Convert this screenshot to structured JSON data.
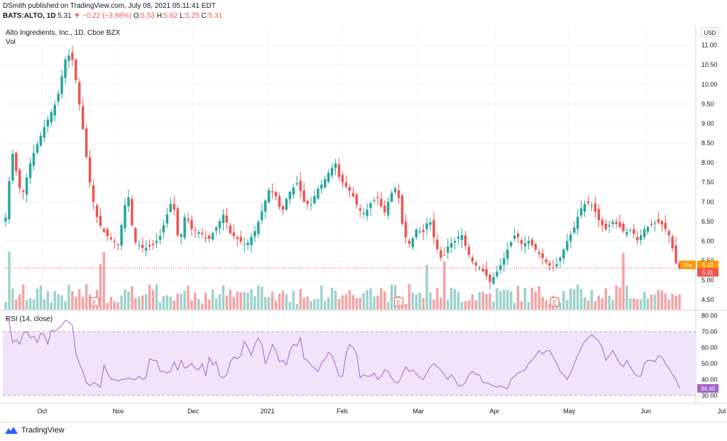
{
  "header": {
    "publisher": "DSmith published on TradingView.com, July 08, 2021 05:11:41 EDT",
    "symbol": "BATS:ALTO, 1D",
    "last": "5.31",
    "change_arrow": "▼",
    "change": "−0.22 (−3.98%)",
    "o_label": "O:",
    "o_value": "5.53",
    "h_label": "H:",
    "h_value": "5.62",
    "l_label": "L:",
    "l_value": "5.25",
    "c_label": "C:",
    "c_value": "5.31"
  },
  "footer": {
    "brand": "TradingView"
  },
  "colors": {
    "up": "#26a69a",
    "down": "#ef5350",
    "vol_up": "#9dd2cb",
    "vol_down": "#f5a3a3",
    "rsi_line": "#a562c9",
    "rsi_band": "#f1e4fa",
    "grid": "#f0f3fa",
    "pre_badge": "#ff9800",
    "last_badge": "#ef5350"
  },
  "chart_data": {
    "type": "candlestick",
    "title": "Alto Ingredients, Inc., 1D, Cboe BZX",
    "volume_label": "Vol",
    "currency": "USD",
    "price_ylim": [
      4.25,
      11.5
    ],
    "price_ticks": [
      "11.00",
      "10.50",
      "10.00",
      "9.50",
      "9.00",
      "8.50",
      "8.00",
      "7.50",
      "7.00",
      "6.50",
      "6.00",
      "5.50",
      "5.00",
      "4.50"
    ],
    "x_labels": [
      "Oct",
      "Nov",
      "Dec",
      "2021",
      "Feb",
      "Mar",
      "Apr",
      "May",
      "Jun",
      "Jul"
    ],
    "x_label_positions": [
      10.4,
      32.1,
      53.4,
      74.6,
      95.9,
      117.6,
      139.3,
      160.6,
      182.4,
      204.0
    ],
    "earnings_marker_positions": [
      27.7,
      122.5,
      171.1
    ],
    "earnings_label": "E",
    "close_path": [
      [
        0,
        6.6
      ],
      [
        2,
        8.3
      ],
      [
        5,
        7.1
      ],
      [
        8,
        8.1
      ],
      [
        12,
        8.9
      ],
      [
        16,
        9.6
      ],
      [
        19,
        10.8
      ],
      [
        21,
        10.6
      ],
      [
        24,
        8.9
      ],
      [
        26,
        7.6
      ],
      [
        28,
        6.7
      ],
      [
        30,
        6.3
      ],
      [
        32,
        6.1
      ],
      [
        35,
        5.9
      ],
      [
        38,
        7.3
      ],
      [
        40,
        6.0
      ],
      [
        43,
        5.8
      ],
      [
        46,
        5.9
      ],
      [
        48,
        6.1
      ],
      [
        50,
        6.6
      ],
      [
        52,
        7.1
      ],
      [
        54,
        5.9
      ],
      [
        56,
        6.7
      ],
      [
        58,
        6.3
      ],
      [
        61,
        6.2
      ],
      [
        63,
        6.0
      ],
      [
        66,
        6.4
      ],
      [
        68,
        6.7
      ],
      [
        70,
        6.2
      ],
      [
        73,
        6.0
      ],
      [
        75,
        5.9
      ],
      [
        78,
        6.3
      ],
      [
        80,
        6.8
      ],
      [
        82,
        7.3
      ],
      [
        84,
        7.2
      ],
      [
        86,
        6.7
      ],
      [
        88,
        7.2
      ],
      [
        91,
        7.5
      ],
      [
        93,
        7.0
      ],
      [
        95,
        6.9
      ],
      [
        97,
        7.3
      ],
      [
        99,
        7.5
      ],
      [
        101,
        7.8
      ],
      [
        103,
        8.0
      ],
      [
        104,
        7.6
      ],
      [
        106,
        7.4
      ],
      [
        108,
        7.2
      ],
      [
        110,
        6.8
      ],
      [
        112,
        6.7
      ],
      [
        114,
        7.0
      ],
      [
        116,
        7.1
      ],
      [
        118,
        6.7
      ],
      [
        120,
        7.2
      ],
      [
        122,
        7.4
      ],
      [
        124,
        6.2
      ],
      [
        126,
        5.9
      ],
      [
        128,
        6.3
      ],
      [
        130,
        6.2
      ],
      [
        132,
        6.6
      ],
      [
        134,
        5.9
      ],
      [
        136,
        5.5
      ],
      [
        138,
        5.9
      ],
      [
        140,
        6.0
      ],
      [
        142,
        6.2
      ],
      [
        144,
        5.7
      ],
      [
        146,
        5.4
      ],
      [
        148,
        5.3
      ],
      [
        150,
        5.1
      ],
      [
        151,
        4.95
      ],
      [
        153,
        5.2
      ],
      [
        155,
        5.5
      ],
      [
        157,
        5.9
      ],
      [
        159,
        6.2
      ],
      [
        161,
        5.9
      ],
      [
        163,
        6.0
      ],
      [
        165,
        5.8
      ],
      [
        167,
        5.6
      ],
      [
        169,
        5.4
      ],
      [
        171,
        5.3
      ],
      [
        173,
        5.6
      ],
      [
        175,
        6.0
      ],
      [
        177,
        6.3
      ],
      [
        179,
        6.8
      ],
      [
        181,
        7.0
      ],
      [
        183,
        6.9
      ],
      [
        185,
        6.5
      ],
      [
        187,
        6.3
      ],
      [
        189,
        6.5
      ],
      [
        191,
        6.4
      ],
      [
        193,
        6.2
      ],
      [
        195,
        6.3
      ],
      [
        197,
        6.0
      ],
      [
        199,
        6.3
      ],
      [
        201,
        6.4
      ],
      [
        203,
        6.5
      ],
      [
        205,
        6.4
      ],
      [
        207,
        6.1
      ],
      [
        209,
        5.4
      ],
      [
        210,
        5.31
      ]
    ],
    "rsi": {
      "label": "RSI (14, close)",
      "ylim": [
        25,
        82
      ],
      "ticks": [
        "80.00",
        "70.00",
        "60.00",
        "50.00",
        "40.00",
        "30.00"
      ],
      "band": [
        30,
        70
      ],
      "current": 34.4,
      "values": [
        79,
        76,
        63,
        65,
        62,
        69,
        70,
        66,
        67,
        63,
        69,
        68,
        62,
        71,
        70,
        72,
        74,
        77,
        76,
        74,
        56,
        50,
        45,
        38,
        36,
        38,
        37,
        35,
        49,
        44,
        40,
        40,
        39,
        40,
        40,
        41,
        40,
        40,
        42,
        40,
        41,
        53,
        52,
        52,
        45,
        45,
        44,
        45,
        51,
        46,
        52,
        47,
        48,
        50,
        47,
        46,
        50,
        42,
        54,
        49,
        51,
        42,
        41,
        43,
        51,
        54,
        53,
        55,
        64,
        60,
        55,
        62,
        66,
        62,
        50,
        55,
        62,
        58,
        51,
        52,
        49,
        58,
        62,
        61,
        66,
        53,
        52,
        49,
        47,
        45,
        50,
        53,
        57,
        55,
        49,
        42,
        42,
        56,
        62,
        60,
        56,
        41,
        43,
        42,
        42,
        44,
        40,
        42,
        46,
        45,
        41,
        38,
        38,
        43,
        48,
        45,
        46,
        44,
        41,
        40,
        44,
        48,
        50,
        48,
        46,
        43,
        40,
        43,
        40,
        36,
        36,
        38,
        43,
        45,
        43,
        43,
        38,
        38,
        37,
        36,
        35,
        36,
        35,
        34,
        40,
        42,
        44,
        45,
        46,
        50,
        52,
        55,
        58,
        56,
        58,
        58,
        54,
        50,
        45,
        43,
        40,
        44,
        50,
        55,
        60,
        64,
        66,
        68,
        66,
        64,
        60,
        52,
        55,
        58,
        54,
        50,
        48,
        52,
        48,
        44,
        42,
        42,
        50,
        52,
        52,
        51,
        55,
        54,
        50,
        47,
        43,
        40,
        34.4
      ]
    }
  },
  "price_axis": {
    "pre_label": "Pre",
    "pre_value": "5.32",
    "last_value": "5.31"
  }
}
